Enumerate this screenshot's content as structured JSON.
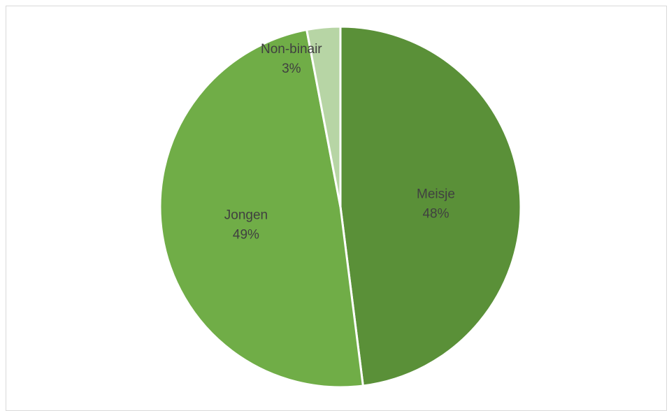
{
  "chart_data": {
    "type": "pie",
    "title": "",
    "slices": [
      {
        "label": "Meisje",
        "value": 48,
        "value_label": "48%",
        "color": "#5a9038"
      },
      {
        "label": "Jongen",
        "value": 49,
        "value_label": "49%",
        "color": "#70ad47"
      },
      {
        "label": "Non-binair",
        "value": 3,
        "value_label": "3%",
        "color": "#b7d5a5"
      }
    ],
    "start_angle": "12 o'clock",
    "direction": "clockwise",
    "legend": "none",
    "data_labels": "category and percentage inside slices"
  }
}
